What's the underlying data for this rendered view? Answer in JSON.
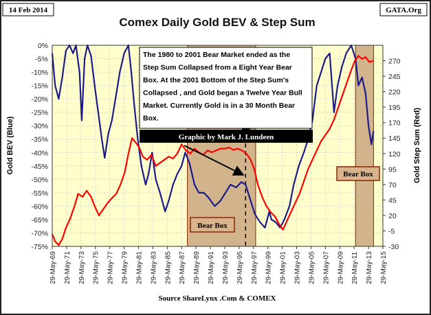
{
  "header": {
    "date": "14 Feb 2014",
    "site": "GATA.Org"
  },
  "annotation": {
    "lines": [
      "The 1980 to 2001 Bear Market ended as the",
      "Step Sum Collapsed from a Eight Year Bear",
      "Box.  At the  2001 Bottom of the Step Sum's",
      "Collapsed , and Gold began a Twelve Year Bull",
      "Market.  Currently Gold is in a  30 Month Bear",
      "Box."
    ],
    "credit": "Graphic by Mark J. Lundeen",
    "bear_box_label": "Bear Box"
  },
  "source": "Source ShareLynx .Com & COMEX",
  "colors": {
    "blue": "#1a1a8c",
    "red": "#ff0000",
    "bg": "#ffffcc",
    "box": "#d2b48c"
  },
  "chart_data": {
    "type": "line",
    "title": "Comex Daily Gold BEV &  Step Sum",
    "ylabel": "Gold BEV    (Blue)",
    "y2label": "Gold Step Sum   (Red)",
    "xlim": [
      1969.4,
      2015.4
    ],
    "ylim": [
      -75,
      0
    ],
    "y2lim": [
      -30,
      295
    ],
    "yticks": [
      "0%",
      "-5%",
      "-10%",
      "-15%",
      "-20%",
      "-25%",
      "-30%",
      "-35%",
      "-40%",
      "-45%",
      "-50%",
      "-55%",
      "-60%",
      "-65%",
      "-70%",
      "-75%"
    ],
    "y2ticks": [
      270,
      245,
      220,
      195,
      170,
      145,
      120,
      95,
      70,
      45,
      20,
      -5,
      -30
    ],
    "xticks": [
      "29-May-69",
      "29-May-71",
      "29-May-73",
      "29-May-75",
      "29-May-77",
      "29-May-79",
      "29-May-81",
      "29-May-83",
      "29-May-85",
      "29-May-87",
      "29-May-89",
      "29-May-91",
      "29-May-93",
      "29-May-95",
      "29-May-97",
      "29-May-99",
      "29-May-01",
      "29-May-03",
      "29-May-05",
      "29-May-07",
      "29-May-09",
      "29-May-11",
      "29-May-13",
      "29-May-15"
    ],
    "bear_boxes": [
      [
        1988.2,
        1997.7
      ],
      [
        2011.6,
        2014.1
      ]
    ],
    "dashed_line_year": 1996.3,
    "series": [
      {
        "name": "Gold BEV",
        "axis": "left",
        "color": "#1a1a8c",
        "x": [
          1969.4,
          1969.8,
          1970.3,
          1970.8,
          1971.3,
          1971.8,
          1972.3,
          1972.7,
          1973.2,
          1973.5,
          1973.9,
          1974.3,
          1974.8,
          1975.3,
          1975.8,
          1976.3,
          1976.7,
          1977.2,
          1977.7,
          1978.2,
          1978.8,
          1979.4,
          1980.0,
          1980.4,
          1980.8,
          1981.3,
          1981.8,
          1982.4,
          1982.8,
          1983.3,
          1983.8,
          1984.4,
          1985.1,
          1985.6,
          1986.2,
          1986.8,
          1987.4,
          1987.9,
          1988.5,
          1989.2,
          1989.8,
          1990.5,
          1991.2,
          1992.0,
          1992.8,
          1993.5,
          1994.2,
          1995.0,
          1995.7,
          1996.3,
          1997.0,
          1997.6,
          1998.3,
          1999.0,
          1999.6,
          1999.9,
          2000.5,
          2001.1,
          2001.7,
          2002.4,
          2003.0,
          2003.7,
          2004.4,
          2005.0,
          2005.6,
          2006.2,
          2006.8,
          2007.4,
          2008.0,
          2008.6,
          2009.1,
          2009.7,
          2010.3,
          2011.0,
          2011.6,
          2012.0,
          2012.5,
          2013.0,
          2013.4,
          2013.8,
          2014.1
        ],
        "y": [
          -3,
          -15,
          -20,
          -12,
          -2,
          0,
          -3,
          0,
          -10,
          -28,
          -5,
          0,
          -4,
          -15,
          -25,
          -35,
          -42,
          -33,
          -28,
          -20,
          -10,
          -3,
          0,
          -10,
          -22,
          -35,
          -45,
          -52,
          -48,
          -40,
          -50,
          -55,
          -62,
          -58,
          -52,
          -48,
          -45,
          -40,
          -44,
          -52,
          -55,
          -55,
          -57,
          -60,
          -58,
          -55,
          -52,
          -53,
          -51,
          -52,
          -58,
          -63,
          -66,
          -68,
          -62,
          -65,
          -66,
          -68,
          -65,
          -60,
          -52,
          -45,
          -40,
          -35,
          -28,
          -15,
          -10,
          -5,
          -3,
          -25,
          -15,
          -8,
          -3,
          0,
          -5,
          -15,
          -12,
          -18,
          -30,
          -37,
          -32
        ]
      },
      {
        "name": "Gold Step Sum",
        "axis": "right",
        "color": "#ff0000",
        "x": [
          1969.4,
          1969.8,
          1970.3,
          1970.8,
          1971.3,
          1971.9,
          1972.5,
          1973.0,
          1973.6,
          1974.2,
          1974.8,
          1975.3,
          1975.9,
          1976.5,
          1977.1,
          1977.7,
          1978.3,
          1978.9,
          1979.5,
          1980.0,
          1980.5,
          1981.0,
          1981.5,
          1982.0,
          1982.6,
          1983.2,
          1983.8,
          1984.4,
          1985.0,
          1985.6,
          1986.2,
          1986.8,
          1987.4,
          1988.0,
          1988.6,
          1989.2,
          1989.8,
          1990.4,
          1991.0,
          1991.6,
          1992.2,
          1992.8,
          1993.4,
          1994.0,
          1994.6,
          1995.2,
          1995.8,
          1996.4,
          1997.0,
          1997.5,
          1998.0,
          1998.6,
          1999.2,
          1999.8,
          2000.4,
          2001.0,
          2001.5,
          2002.0,
          2002.6,
          2003.2,
          2003.8,
          2004.4,
          2005.0,
          2005.6,
          2006.2,
          2006.8,
          2007.4,
          2008.0,
          2008.6,
          2009.2,
          2009.8,
          2010.4,
          2011.0,
          2011.5,
          2012.0,
          2012.5,
          2013.0,
          2013.5,
          2014.1
        ],
        "y": [
          -10,
          -22,
          -28,
          -18,
          0,
          15,
          35,
          55,
          50,
          60,
          50,
          35,
          20,
          30,
          40,
          48,
          55,
          70,
          90,
          120,
          145,
          138,
          130,
          115,
          110,
          118,
          100,
          105,
          110,
          115,
          112,
          120,
          135,
          125,
          120,
          128,
          122,
          118,
          125,
          122,
          125,
          128,
          128,
          130,
          126,
          128,
          125,
          120,
          110,
          95,
          70,
          50,
          35,
          25,
          18,
          5,
          -3,
          10,
          25,
          40,
          55,
          75,
          95,
          110,
          125,
          140,
          150,
          160,
          175,
          195,
          215,
          235,
          255,
          270,
          278,
          273,
          276,
          268,
          270
        ]
      }
    ]
  }
}
